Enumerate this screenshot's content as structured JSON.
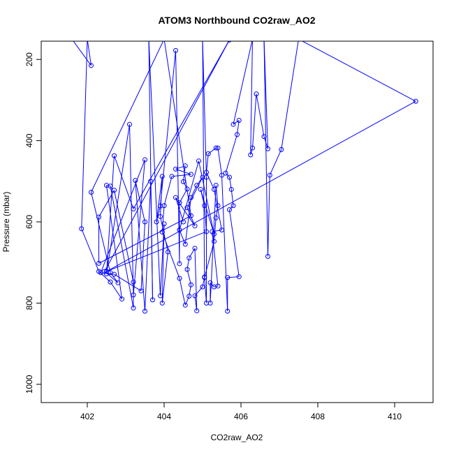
{
  "chart_data": {
    "type": "line",
    "title": "ATOM3 Northbound CO2raw_AO2",
    "xlabel": "CO2raw_AO2",
    "ylabel": "Pressure (mbar)",
    "xlim": [
      400.8,
      411.0
    ],
    "ylim": [
      1045,
      155
    ],
    "y_reversed": true,
    "grid": false,
    "legend": "none",
    "x_ticks": [
      402,
      404,
      406,
      408,
      410
    ],
    "y_ticks": [
      200,
      400,
      600,
      800,
      1000
    ],
    "series": [
      {
        "color": "#0000ff",
        "marker": "open-circle",
        "points": [
          [
            401.6,
            150
          ],
          [
            402.1,
            215
          ],
          [
            402.0,
            150
          ],
          [
            401.85,
            617
          ],
          [
            402.3,
            722
          ],
          [
            402.6,
            748
          ],
          [
            402.9,
            790
          ],
          [
            402.5,
            510
          ],
          [
            402.6,
            512
          ],
          [
            403.2,
            812
          ],
          [
            403.2,
            748
          ],
          [
            402.7,
            522
          ],
          [
            402.3,
            588
          ],
          [
            402.3,
            702
          ],
          [
            404.7,
            585
          ],
          [
            404.0,
            150
          ],
          [
            402.1,
            527
          ],
          [
            402.6,
            725
          ],
          [
            402.8,
            750
          ],
          [
            402.45,
            722
          ],
          [
            405.7,
            152
          ],
          [
            403.2,
            568
          ],
          [
            402.7,
            437
          ],
          [
            402.5,
            728
          ],
          [
            403.1,
            360
          ],
          [
            403.2,
            780
          ],
          [
            403.5,
            447
          ],
          [
            402.35,
            725
          ],
          [
            402.7,
            729
          ],
          [
            403.4,
            770
          ],
          [
            403.5,
            600
          ],
          [
            403.25,
            498
          ],
          [
            403.5,
            820
          ],
          [
            403.65,
            500
          ],
          [
            403.7,
            792
          ],
          [
            403.6,
            150
          ],
          [
            403.9,
            782
          ],
          [
            404.0,
            605
          ],
          [
            403.95,
            800
          ],
          [
            404.1,
            674
          ],
          [
            403.9,
            587
          ],
          [
            403.95,
            488
          ],
          [
            403.8,
            600
          ],
          [
            403.9,
            561
          ],
          [
            404.3,
            178
          ],
          [
            404.4,
            703
          ],
          [
            404.4,
            553
          ],
          [
            404.6,
            519
          ],
          [
            404.5,
            501
          ],
          [
            404.55,
            462
          ],
          [
            404.3,
            470
          ],
          [
            404.7,
            483
          ],
          [
            404.2,
            488
          ],
          [
            404.0,
            560
          ],
          [
            403.95,
            625
          ],
          [
            404.4,
            739
          ],
          [
            404.55,
            805
          ],
          [
            404.65,
            783
          ],
          [
            404.7,
            755
          ],
          [
            404.6,
            717
          ],
          [
            404.65,
            689
          ],
          [
            404.8,
            665
          ],
          [
            404.85,
            819
          ],
          [
            404.8,
            782
          ],
          [
            405.0,
            760
          ],
          [
            405.05,
            736
          ],
          [
            405.1,
            800
          ],
          [
            405.1,
            490
          ],
          [
            405.0,
            150
          ],
          [
            405.05,
            737
          ],
          [
            405.3,
            648
          ],
          [
            405.35,
            590
          ],
          [
            405.4,
            560
          ],
          [
            405.35,
            510
          ],
          [
            405.2,
            800
          ],
          [
            405.2,
            750
          ],
          [
            405.3,
            760
          ],
          [
            405.4,
            758
          ],
          [
            405.25,
            624
          ],
          [
            405.5,
            620
          ],
          [
            405.3,
            520
          ],
          [
            405.1,
            478
          ],
          [
            405.15,
            432
          ],
          [
            405.35,
            418
          ],
          [
            405.4,
            418
          ],
          [
            405.5,
            485
          ],
          [
            405.65,
            820
          ],
          [
            405.65,
            737
          ],
          [
            405.95,
            735
          ],
          [
            405.7,
            570
          ],
          [
            405.8,
            560
          ],
          [
            405.75,
            520
          ],
          [
            405.7,
            490
          ],
          [
            405.6,
            480
          ],
          [
            405.9,
            385
          ],
          [
            405.95,
            350
          ],
          [
            405.8,
            360
          ],
          [
            406.3,
            150
          ],
          [
            406.25,
            435
          ],
          [
            406.3,
            418
          ],
          [
            406.4,
            285
          ],
          [
            406.6,
            390
          ],
          [
            406.7,
            420
          ],
          [
            406.6,
            150
          ],
          [
            406.7,
            685
          ],
          [
            406.75,
            485
          ],
          [
            407.05,
            422
          ],
          [
            407.5,
            150
          ],
          [
            410.55,
            303
          ],
          [
            402.5,
            722
          ],
          [
            405.1,
            624
          ],
          [
            405.05,
            560
          ],
          [
            404.95,
            520
          ],
          [
            405.3,
            630
          ],
          [
            404.9,
            450
          ],
          [
            404.4,
            620
          ],
          [
            404.55,
            655
          ],
          [
            404.7,
            540
          ],
          [
            404.85,
            510
          ],
          [
            405.0,
            490
          ],
          [
            404.6,
            565
          ],
          [
            404.8,
            610
          ],
          [
            404.3,
            540
          ],
          [
            404.5,
            600
          ]
        ]
      }
    ]
  }
}
